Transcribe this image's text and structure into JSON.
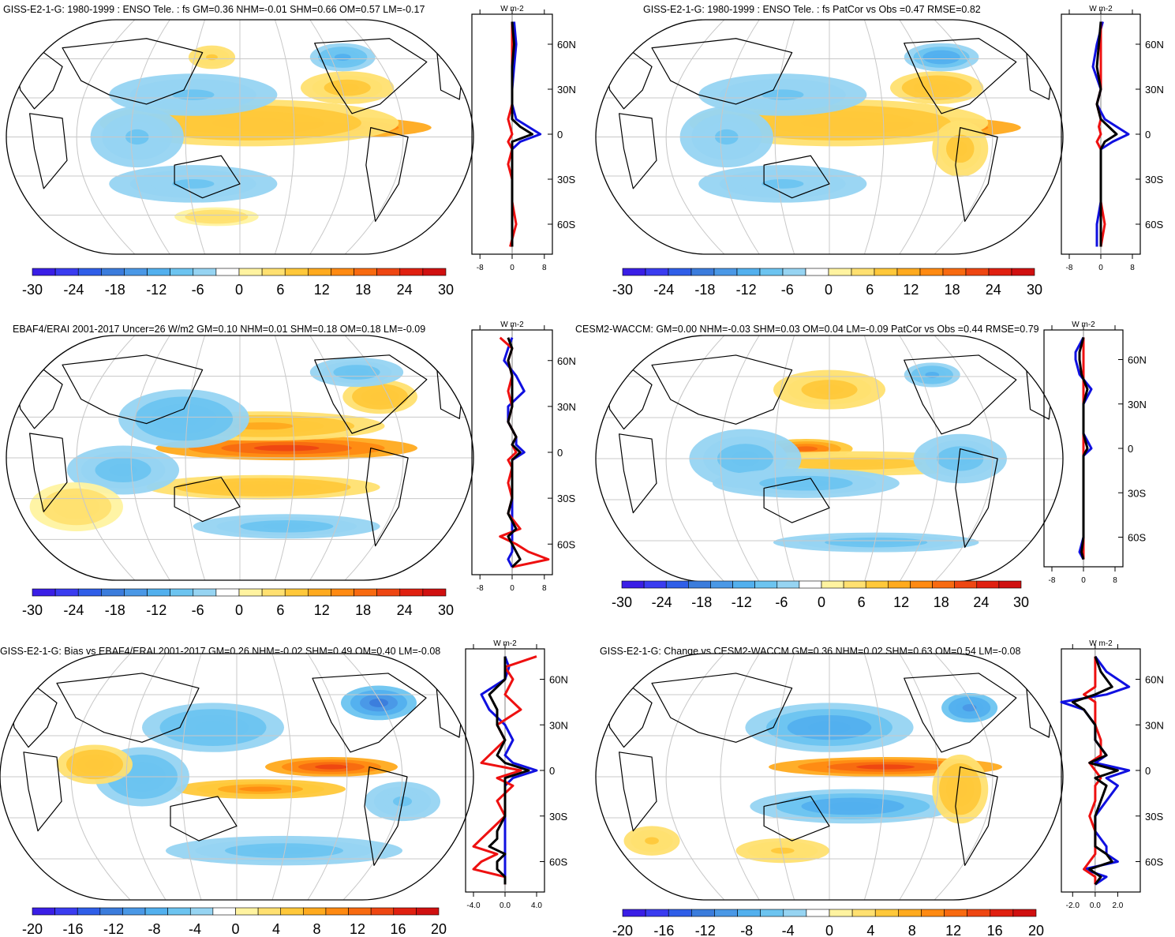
{
  "figure": {
    "units": "W m-2"
  },
  "colors": {
    "ocean_background": "#ffffff",
    "land_outline": "#000000",
    "graticule": "#c8c8c8",
    "line_land": "#1010e0",
    "line_ocean": "#ee1010",
    "line_total": "#000000",
    "palette": [
      "#3a1ee6",
      "#3a3cf0",
      "#2f5ee8",
      "#3b7cdc",
      "#4a98e6",
      "#52b0ee",
      "#6cc4f0",
      "#96d4f2",
      "#ffffff",
      "#fff3a0",
      "#ffe070",
      "#ffc83a",
      "#ffaa1e",
      "#ff8a12",
      "#f86a10",
      "#ee4612",
      "#e02010",
      "#d01010"
    ]
  },
  "chart_data": [
    {
      "type": "heatmap",
      "title": "GISS-E2-1-G: 1980-1999 : ENSO Tele. : fs GM=0.36 NHM=-0.01 SHM=0.66 OM=0.57 LM=-0.17",
      "projection": "Robinson",
      "colorbar": {
        "ticks": [
          "-30",
          "-24",
          "-18",
          "-12",
          "-6",
          "0",
          "6",
          "12",
          "18",
          "24",
          "30"
        ],
        "range": [
          -30,
          30
        ]
      },
      "profile": {
        "xlabel": "W m-2",
        "xticks": [
          "-8",
          "0",
          "8"
        ],
        "xlim": [
          -10,
          10
        ],
        "yticks": [
          "60N",
          "30N",
          "0",
          "30S",
          "60S"
        ],
        "ylim": [
          -80,
          80
        ],
        "lat": [
          75,
          60,
          45,
          30,
          20,
          10,
          5,
          0,
          -5,
          -10,
          -20,
          -30,
          -45,
          -60,
          -75
        ],
        "series": [
          {
            "name": "land",
            "values": [
              0.5,
              1.0,
              0.5,
              0,
              0,
              1,
              4,
              7,
              2,
              0,
              0,
              0,
              0,
              0,
              0
            ]
          },
          {
            "name": "ocean",
            "values": [
              0,
              0,
              0,
              0,
              0,
              -1,
              -0.5,
              0,
              -1,
              0,
              -1,
              0,
              0,
              1,
              -0.5
            ]
          },
          {
            "name": "total",
            "values": [
              0,
              0.5,
              0,
              0,
              0,
              0,
              2,
              5,
              0,
              0,
              0,
              0,
              0,
              0,
              0
            ]
          }
        ]
      }
    },
    {
      "type": "heatmap",
      "title": "GISS-E2-1-G: 1980-1999 : ENSO Tele. : fs PatCor vs Obs =0.47 RMSE=0.82",
      "projection": "Robinson",
      "colorbar": {
        "ticks": [
          "-30",
          "-24",
          "-18",
          "-12",
          "-6",
          "0",
          "6",
          "12",
          "18",
          "24",
          "30"
        ],
        "range": [
          -30,
          30
        ]
      },
      "profile": {
        "xlabel": "W m-2",
        "xticks": [
          "-8",
          "0",
          "8"
        ],
        "xlim": [
          -10,
          10
        ],
        "yticks": [
          "60N",
          "30N",
          "0",
          "30S",
          "60S"
        ],
        "ylim": [
          -80,
          80
        ],
        "lat": [
          75,
          60,
          45,
          30,
          20,
          10,
          5,
          0,
          -5,
          -10,
          -20,
          -30,
          -45,
          -60,
          -75
        ],
        "series": [
          {
            "name": "land",
            "values": [
              0.5,
              -1,
              -2,
              0,
              -1,
              1,
              4,
              7,
              3,
              0,
              0,
              0,
              0,
              -1,
              -1
            ]
          },
          {
            "name": "ocean",
            "values": [
              0,
              0,
              0,
              0,
              -1,
              0,
              -0.5,
              0,
              -1,
              0,
              0,
              0,
              0,
              1,
              0
            ]
          },
          {
            "name": "total",
            "values": [
              0,
              -0.5,
              -1,
              0,
              -1,
              0,
              2,
              4,
              1,
              0,
              0,
              0,
              0,
              0,
              0
            ]
          }
        ]
      }
    },
    {
      "type": "heatmap",
      "title": "EBAF4/ERAI 2001-2017 Uncer=26 W/m2 GM=0.10 NHM=0.01 SHM=0.18 OM=0.18 LM=-0.09",
      "projection": "Robinson",
      "colorbar": {
        "ticks": [
          "-30",
          "-24",
          "-18",
          "-12",
          "-6",
          "0",
          "6",
          "12",
          "18",
          "24",
          "30"
        ],
        "range": [
          -30,
          30
        ]
      },
      "profile": {
        "xlabel": "W m-2",
        "xticks": [
          "-8",
          "0",
          "8"
        ],
        "xlim": [
          -10,
          10
        ],
        "yticks": [
          "60N",
          "30N",
          "0",
          "30S",
          "60S"
        ],
        "ylim": [
          -80,
          80
        ],
        "lat": [
          75,
          68,
          60,
          50,
          40,
          30,
          20,
          10,
          5,
          0,
          -5,
          -10,
          -20,
          -30,
          -40,
          -50,
          -55,
          -60,
          -65,
          -70,
          -75
        ],
        "series": [
          {
            "name": "land",
            "values": [
              0,
              -1,
              -2,
              1,
              3,
              -1,
              -1,
              1,
              1,
              3,
              0,
              0,
              0,
              0,
              0,
              0,
              0,
              0,
              0,
              -1,
              0
            ]
          },
          {
            "name": "ocean",
            "values": [
              -3,
              0,
              -1,
              0,
              -1,
              0,
              -1,
              1,
              0,
              1,
              -1,
              0,
              -1,
              0,
              -1,
              2,
              -3,
              1,
              4,
              9,
              0
            ]
          },
          {
            "name": "total",
            "values": [
              -1,
              0,
              -1,
              0,
              0,
              0,
              -1,
              1,
              0,
              2,
              0,
              0,
              0,
              0,
              -1,
              1,
              -1,
              0,
              1,
              2,
              0
            ]
          }
        ]
      }
    },
    {
      "type": "heatmap",
      "title": "CESM2-WACCM: GM=0.00 NHM=-0.03 SHM=0.03 OM=0.04 LM=-0.09 PatCor vs Obs =0.44 RMSE=0.79",
      "projection": "Robinson",
      "colorbar": {
        "ticks": [
          "-30",
          "-24",
          "-18",
          "-12",
          "-6",
          "0",
          "6",
          "12",
          "18",
          "24",
          "30"
        ],
        "range": [
          -30,
          30
        ]
      },
      "profile": {
        "xlabel": "W m-2",
        "xticks": [
          "-8",
          "0",
          "8"
        ],
        "xlim": [
          -10,
          10
        ],
        "yticks": [
          "60N",
          "30N",
          "0",
          "30S",
          "60S"
        ],
        "ylim": [
          -80,
          80
        ],
        "lat": [
          75,
          65,
          60,
          50,
          40,
          30,
          20,
          10,
          5,
          0,
          -5,
          -10,
          -20,
          -30,
          -45,
          -60,
          -70,
          -75
        ],
        "series": [
          {
            "name": "land",
            "values": [
              0,
              -2,
              -2,
              -1,
              2,
              0,
              0,
              0,
              1,
              2,
              0,
              0,
              0,
              0,
              0,
              0,
              -1,
              0
            ]
          },
          {
            "name": "ocean",
            "values": [
              0,
              0,
              0,
              0,
              0,
              0,
              0,
              0,
              0,
              0,
              0,
              0,
              0,
              0,
              0,
              0,
              0,
              0
            ]
          },
          {
            "name": "total",
            "values": [
              0,
              -1,
              -1,
              -0.5,
              1,
              0,
              0,
              0,
              0.5,
              1,
              0,
              0,
              0,
              0,
              0,
              0,
              -0.5,
              0
            ]
          }
        ]
      }
    },
    {
      "type": "heatmap",
      "title": "GISS-E2-1-G: Bias vs EBAF4/ERAI 2001-2017 GM=0.26 NHM=-0.02 SHM=0.49 OM=0.40 LM=-0.08",
      "projection": "Robinson",
      "colorbar": {
        "ticks": [
          "-20",
          "-16",
          "-12",
          "-8",
          "-4",
          "0",
          "4",
          "8",
          "12",
          "16",
          "20"
        ],
        "range": [
          -20,
          20
        ]
      },
      "profile": {
        "xlabel": "W m-2",
        "xticks": [
          "-4.0",
          "0.0",
          "4.0"
        ],
        "xlim": [
          -5,
          5
        ],
        "yticks": [
          "60N",
          "30N",
          "0",
          "30S",
          "60S"
        ],
        "ylim": [
          -80,
          80
        ],
        "lat": [
          75,
          68,
          60,
          50,
          40,
          30,
          20,
          10,
          5,
          0,
          -5,
          -10,
          -20,
          -30,
          -40,
          -45,
          -50,
          -55,
          -60,
          -65,
          -70,
          -75
        ],
        "series": [
          {
            "name": "land",
            "values": [
              0,
              0.5,
              0,
              -3,
              -2,
              0,
              1,
              0,
              1,
              4,
              1,
              0,
              0,
              0,
              0,
              0,
              0,
              0,
              0,
              0,
              0,
              0
            ]
          },
          {
            "name": "ocean",
            "values": [
              4,
              0,
              1,
              0,
              2,
              -1,
              0,
              -2,
              -3,
              2,
              -1,
              1,
              -1,
              0,
              -2,
              -3,
              -4,
              -1,
              -3,
              -4,
              0,
              0
            ]
          },
          {
            "name": "total",
            "values": [
              0,
              0,
              0,
              -2,
              -1,
              -1,
              0,
              -1,
              0,
              3,
              0,
              0,
              0,
              0,
              -1,
              -1,
              -2,
              0,
              -1,
              -1,
              0,
              0
            ]
          }
        ]
      }
    },
    {
      "type": "heatmap",
      "title": "GISS-E2-1-G: Change vs CESM2-WACCM GM=0.36 NHM=0.02 SHM=0.63 OM=0.54 LM=-0.08",
      "projection": "Robinson",
      "colorbar": {
        "ticks": [
          "-20",
          "-16",
          "-12",
          "-8",
          "-4",
          "0",
          "4",
          "8",
          "12",
          "16",
          "20"
        ],
        "range": [
          -20,
          20
        ]
      },
      "profile": {
        "xlabel": "W m-2",
        "xticks": [
          "-2.0",
          "0.0",
          "2.0"
        ],
        "xlim": [
          -3,
          4
        ],
        "yticks": [
          "60N",
          "30N",
          "0",
          "30S",
          "60S"
        ],
        "ylim": [
          -80,
          80
        ],
        "lat": [
          75,
          65,
          60,
          55,
          50,
          45,
          40,
          30,
          20,
          10,
          5,
          0,
          -5,
          -10,
          -20,
          -30,
          -40,
          -50,
          -55,
          -60,
          -65,
          -70,
          -75
        ],
        "series": [
          {
            "name": "land",
            "values": [
              0,
              1,
              2,
              3,
              1,
              -3,
              -1,
              0,
              0,
              1,
              0,
              3,
              1,
              2,
              1,
              0,
              0,
              1,
              1,
              2,
              -1,
              1,
              0
            ]
          },
          {
            "name": "ocean",
            "values": [
              0,
              0,
              0,
              0,
              -1,
              0,
              0,
              0,
              0.5,
              0.5,
              -0.5,
              0,
              0.5,
              0,
              0,
              -0.5,
              0,
              0,
              0,
              -0.5,
              -1,
              0,
              0
            ]
          },
          {
            "name": "total",
            "values": [
              0,
              0.5,
              1,
              1.5,
              0,
              -2,
              -1,
              0,
              0,
              1,
              -0.5,
              2,
              0,
              1,
              0.5,
              0,
              0,
              0,
              1,
              1.5,
              -0.5,
              0.5,
              0
            ]
          }
        ]
      }
    }
  ]
}
